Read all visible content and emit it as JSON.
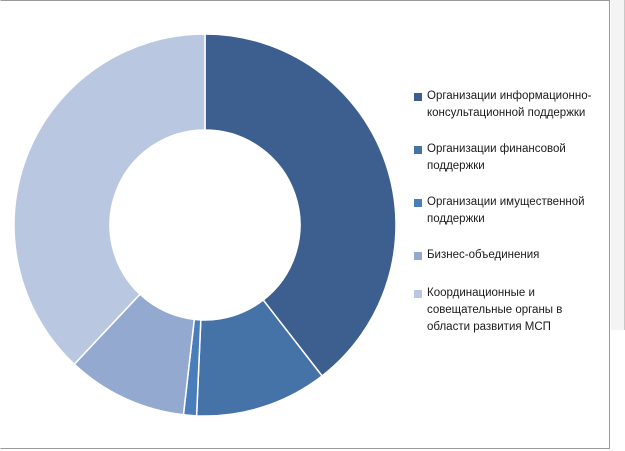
{
  "chart_data": {
    "type": "pie",
    "subtype": "donut",
    "categories": [
      "Организации информационно-консультационной поддержки",
      "Организации финансовой поддержки",
      "Организации имущественной поддержки",
      "Бизнес-объединения",
      "Координационные  и совещательные  органы в области развития МСП"
    ],
    "values": [
      39.5,
      11.2,
      1.1,
      10.2,
      38.0
    ],
    "colors": [
      "#3c5f8f",
      "#4572a7",
      "#4a7ebb",
      "#94a9d0",
      "#b9c7e1"
    ],
    "legend_position": "right",
    "title": ""
  }
}
